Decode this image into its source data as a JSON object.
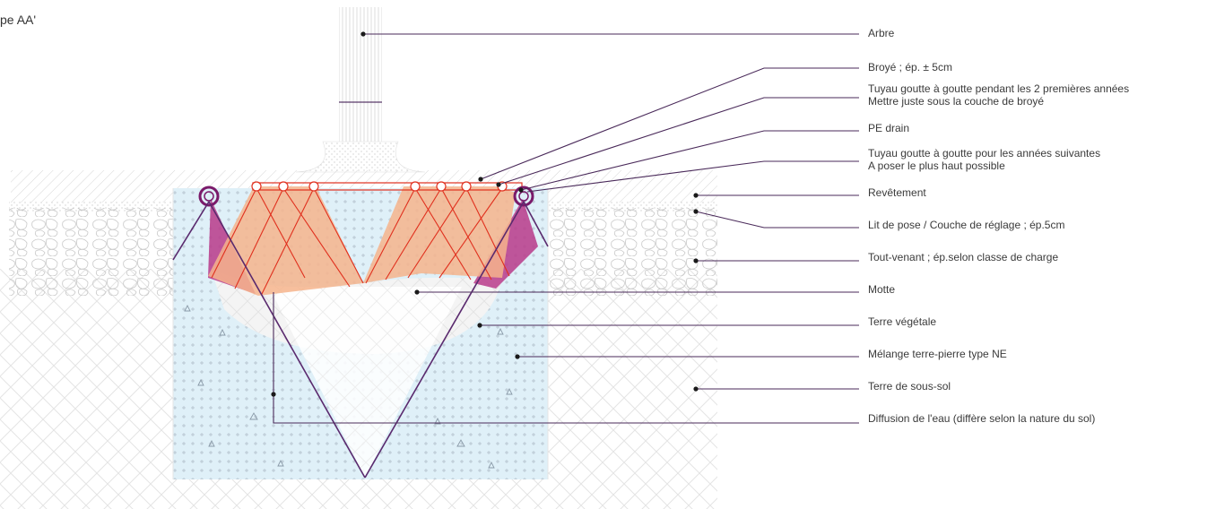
{
  "title": "pe AA'",
  "labels": [
    {
      "id": "arbre",
      "lines": [
        "Arbre"
      ]
    },
    {
      "id": "broye",
      "lines": [
        "Broyé ; ép. ± 5cm"
      ]
    },
    {
      "id": "tuyau1",
      "lines": [
        "Tuyau goutte à goutte pendant les 2 premières années",
        "Mettre juste sous la couche de broyé"
      ]
    },
    {
      "id": "pe-drain",
      "lines": [
        "PE drain"
      ]
    },
    {
      "id": "tuyau2",
      "lines": [
        "Tuyau goutte à goutte pour les années suivantes",
        "A poser le plus haut possible"
      ]
    },
    {
      "id": "revetement",
      "lines": [
        "Revêtement"
      ]
    },
    {
      "id": "lit-de-pose",
      "lines": [
        "Lit de pose / Couche de réglage ; ép.5cm"
      ]
    },
    {
      "id": "tout-venant",
      "lines": [
        "Tout-venant ; ép.selon classe de charge"
      ]
    },
    {
      "id": "motte",
      "lines": [
        "Motte"
      ]
    },
    {
      "id": "terre-vegetale",
      "lines": [
        "Terre végétale"
      ]
    },
    {
      "id": "melange",
      "lines": [
        "Mélange terre-pierre type NE"
      ]
    },
    {
      "id": "terre-sous-sol",
      "lines": [
        "Terre de sous-sol"
      ]
    },
    {
      "id": "diffusion",
      "lines": [
        "Diffusion de l'eau (diffère selon la nature du sol)"
      ]
    }
  ],
  "colors": {
    "leader": "#4a2a5a",
    "red_leader": "#cc2222",
    "pit_fill": "#dff0f8",
    "diffusion_orange": "#f6b48c",
    "diffusion_magenta": "#b83a8a",
    "drain_ring": "#7a1a6a"
  }
}
